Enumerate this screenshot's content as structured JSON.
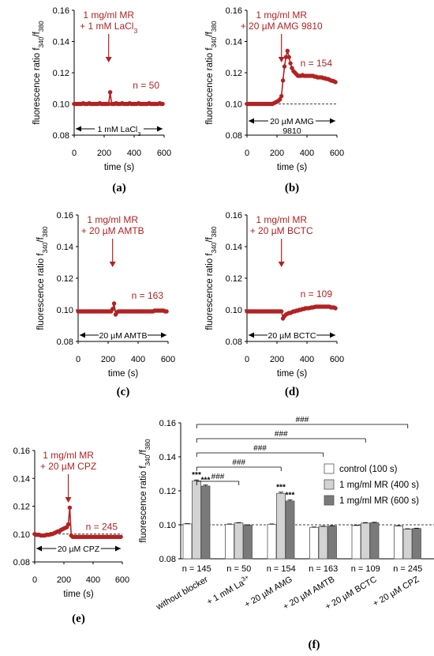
{
  "chart_data": [
    {
      "id": "a",
      "type": "line",
      "panel_label": "(a)",
      "ylabel": "fluorescence ratio f340/f380",
      "xlabel": "time (s)",
      "xlim": [
        0,
        600
      ],
      "ylim": [
        0.08,
        0.16
      ],
      "xticks": [
        0,
        200,
        400,
        600
      ],
      "yticks": [
        0.08,
        0.1,
        0.12,
        0.14,
        0.16
      ],
      "annotation": [
        "1 mg/ml MR",
        "+ 1 mM LaCl3"
      ],
      "arrow_x": 230,
      "n_label": "n = 50",
      "blocker": [
        "1 mM LaCl3"
      ],
      "baseline": null,
      "series": [
        {
          "x": [
            0,
            10,
            20,
            30,
            40,
            50,
            60,
            70,
            80,
            90,
            100,
            110,
            120,
            130,
            140,
            150,
            160,
            170,
            180,
            190,
            200,
            210,
            220,
            230,
            240,
            250,
            260,
            270,
            280,
            290,
            300,
            310,
            320,
            330,
            340,
            350,
            360,
            370,
            380,
            390,
            400,
            410,
            420,
            430,
            440,
            450,
            460,
            470,
            480,
            490,
            500,
            510,
            520,
            530,
            540,
            550,
            560,
            570,
            580,
            590
          ],
          "y": [
            0.1,
            0.1,
            0.1,
            0.1,
            0.1,
            0.1,
            0.1005,
            0.1,
            0.1,
            0.1,
            0.1005,
            0.1,
            0.1,
            0.1,
            0.1,
            0.1,
            0.1,
            0.1005,
            0.1,
            0.1,
            0.1,
            0.1,
            0.1,
            0.1,
            0.1075,
            0.1,
            0.1,
            0.1,
            0.1005,
            0.1,
            0.1,
            0.1,
            0.1005,
            0.1,
            0.1,
            0.1,
            0.1,
            0.1005,
            0.1,
            0.1,
            0.1,
            0.1,
            0.1,
            0.1005,
            0.1,
            0.1,
            0.1,
            0.1,
            0.1,
            0.1,
            0.1005,
            0.1,
            0.1,
            0.1,
            0.1,
            0.1,
            0.1,
            0.1005,
            0.1,
            0.1
          ]
        }
      ]
    },
    {
      "id": "b",
      "type": "line",
      "panel_label": "(b)",
      "ylabel": "fluorescence ratio f340/f380",
      "xlabel": "time (s)",
      "xlim": [
        0,
        600
      ],
      "ylim": [
        0.08,
        0.16
      ],
      "xticks": [
        0,
        200,
        400,
        600
      ],
      "yticks": [
        0.08,
        0.1,
        0.12,
        0.14,
        0.16
      ],
      "annotation": [
        "1 mg/ml MR",
        "+ 20 µM AMG 9810"
      ],
      "arrow_x": 230,
      "n_label": "n = 154",
      "blocker": [
        "20 µM AMG",
        "9810"
      ],
      "baseline": 0.1,
      "series": [
        {
          "x": [
            0,
            10,
            20,
            30,
            40,
            50,
            60,
            70,
            80,
            90,
            100,
            110,
            120,
            130,
            140,
            150,
            160,
            170,
            180,
            190,
            200,
            210,
            220,
            230,
            240,
            250,
            260,
            270,
            280,
            290,
            300,
            310,
            320,
            330,
            340,
            350,
            360,
            370,
            380,
            390,
            400,
            410,
            420,
            430,
            440,
            450,
            460,
            470,
            480,
            490,
            500,
            510,
            520,
            530,
            540,
            550,
            560,
            570,
            580,
            590
          ],
          "y": [
            0.1,
            0.1,
            0.1,
            0.1,
            0.1,
            0.1,
            0.1,
            0.1,
            0.1,
            0.1,
            0.1,
            0.1,
            0.1,
            0.1,
            0.1,
            0.1,
            0.1,
            0.1,
            0.1005,
            0.101,
            0.1015,
            0.102,
            0.103,
            0.105,
            0.115,
            0.124,
            0.13,
            0.134,
            0.13,
            0.126,
            0.123,
            0.121,
            0.12,
            0.119,
            0.118,
            0.118,
            0.118,
            0.1185,
            0.118,
            0.118,
            0.118,
            0.118,
            0.118,
            0.118,
            0.118,
            0.1175,
            0.1175,
            0.117,
            0.117,
            0.117,
            0.117,
            0.1165,
            0.1165,
            0.116,
            0.116,
            0.1155,
            0.115,
            0.1148,
            0.1145,
            0.114
          ]
        }
      ]
    },
    {
      "id": "c",
      "type": "line",
      "panel_label": "(c)",
      "ylabel": "fluorescence ratio f340/f380",
      "xlabel": "time (s)",
      "xlim": [
        0,
        600
      ],
      "ylim": [
        0.08,
        0.16
      ],
      "xticks": [
        0,
        200,
        400,
        600
      ],
      "yticks": [
        0.08,
        0.1,
        0.12,
        0.14,
        0.16
      ],
      "annotation": [
        "1 mg/ml MR",
        "+ 20 µM AMTB"
      ],
      "arrow_x": 230,
      "n_label": "n = 163",
      "blocker": [
        "20 µM AMTB"
      ],
      "baseline": 0.1,
      "series": [
        {
          "x": [
            0,
            10,
            20,
            30,
            40,
            50,
            60,
            70,
            80,
            90,
            100,
            110,
            120,
            130,
            140,
            150,
            160,
            170,
            180,
            190,
            200,
            210,
            220,
            230,
            240,
            250,
            260,
            270,
            280,
            290,
            300,
            310,
            320,
            330,
            340,
            350,
            360,
            370,
            380,
            390,
            400,
            410,
            420,
            430,
            440,
            450,
            460,
            470,
            480,
            490,
            500,
            510,
            520,
            530,
            540,
            550,
            560,
            570,
            580,
            590
          ],
          "y": [
            0.099,
            0.099,
            0.099,
            0.099,
            0.099,
            0.099,
            0.099,
            0.099,
            0.099,
            0.099,
            0.099,
            0.099,
            0.099,
            0.099,
            0.099,
            0.099,
            0.099,
            0.099,
            0.099,
            0.099,
            0.099,
            0.099,
            0.099,
            0.1005,
            0.104,
            0.097,
            0.0985,
            0.099,
            0.099,
            0.099,
            0.099,
            0.099,
            0.099,
            0.099,
            0.099,
            0.099,
            0.099,
            0.099,
            0.099,
            0.099,
            0.099,
            0.099,
            0.099,
            0.099,
            0.099,
            0.099,
            0.099,
            0.099,
            0.099,
            0.099,
            0.099,
            0.0995,
            0.0995,
            0.0995,
            0.0995,
            0.0995,
            0.0995,
            0.0995,
            0.099,
            0.099
          ]
        }
      ]
    },
    {
      "id": "d",
      "type": "line",
      "panel_label": "(d)",
      "ylabel": "fluorescence ratio f340/f380",
      "xlabel": "time (s)",
      "xlim": [
        0,
        600
      ],
      "ylim": [
        0.08,
        0.16
      ],
      "xticks": [
        0,
        200,
        400,
        600
      ],
      "yticks": [
        0.08,
        0.1,
        0.12,
        0.14,
        0.16
      ],
      "annotation": [
        "1 mg/ml MR",
        "+ 20 µM BCTC"
      ],
      "arrow_x": 230,
      "n_label": "n = 109",
      "blocker": [
        "20 µM BCTC"
      ],
      "baseline": null,
      "series": [
        {
          "x": [
            0,
            10,
            20,
            30,
            40,
            50,
            60,
            70,
            80,
            90,
            100,
            110,
            120,
            130,
            140,
            150,
            160,
            170,
            180,
            190,
            200,
            210,
            220,
            230,
            240,
            250,
            260,
            270,
            280,
            290,
            300,
            310,
            320,
            330,
            340,
            350,
            360,
            370,
            380,
            390,
            400,
            410,
            420,
            430,
            440,
            450,
            460,
            470,
            480,
            490,
            500,
            510,
            520,
            530,
            540,
            550,
            560,
            570,
            580,
            590
          ],
          "y": [
            0.099,
            0.099,
            0.099,
            0.099,
            0.099,
            0.099,
            0.099,
            0.099,
            0.099,
            0.099,
            0.099,
            0.099,
            0.099,
            0.099,
            0.099,
            0.099,
            0.099,
            0.099,
            0.099,
            0.099,
            0.099,
            0.099,
            0.099,
            0.099,
            0.0945,
            0.096,
            0.097,
            0.0975,
            0.098,
            0.098,
            0.0985,
            0.099,
            0.099,
            0.0995,
            0.0995,
            0.1,
            0.1,
            0.1005,
            0.1005,
            0.101,
            0.101,
            0.101,
            0.1012,
            0.1015,
            0.1015,
            0.1018,
            0.102,
            0.102,
            0.102,
            0.102,
            0.102,
            0.102,
            0.102,
            0.102,
            0.102,
            0.102,
            0.1015,
            0.1015,
            0.1015,
            0.101
          ]
        }
      ]
    },
    {
      "id": "e",
      "type": "line",
      "panel_label": "(e)",
      "ylabel": "",
      "xlabel": "time (s)",
      "xlim": [
        0,
        600
      ],
      "ylim": [
        0.08,
        0.16
      ],
      "xticks": [
        0,
        200,
        400,
        600
      ],
      "yticks": [
        0.08,
        0.1,
        0.12,
        0.14,
        0.16
      ],
      "annotation": [
        "1 mg/ml MR",
        "+ 20 µM CPZ"
      ],
      "arrow_x": 230,
      "n_label": "n = 245",
      "blocker": [
        "20 µM CPZ"
      ],
      "baseline": 0.1,
      "series": [
        {
          "x": [
            0,
            10,
            20,
            30,
            40,
            50,
            60,
            70,
            80,
            90,
            100,
            110,
            120,
            130,
            140,
            150,
            160,
            170,
            180,
            190,
            200,
            210,
            220,
            230,
            240,
            250,
            260,
            270,
            280,
            290,
            300,
            310,
            320,
            330,
            340,
            350,
            360,
            370,
            380,
            390,
            400,
            410,
            420,
            430,
            440,
            450,
            460,
            470,
            480,
            490,
            500,
            510,
            520,
            530,
            540,
            550,
            560,
            570,
            580,
            590
          ],
          "y": [
            0.1,
            0.0995,
            0.0995,
            0.0995,
            0.099,
            0.099,
            0.099,
            0.099,
            0.0995,
            0.0995,
            0.0995,
            0.1,
            0.1,
            0.1005,
            0.101,
            0.1015,
            0.102,
            0.102,
            0.103,
            0.1035,
            0.104,
            0.1045,
            0.105,
            0.107,
            0.119,
            0.099,
            0.098,
            0.098,
            0.098,
            0.098,
            0.098,
            0.098,
            0.098,
            0.098,
            0.098,
            0.098,
            0.098,
            0.098,
            0.098,
            0.098,
            0.098,
            0.098,
            0.098,
            0.098,
            0.098,
            0.098,
            0.098,
            0.098,
            0.098,
            0.098,
            0.098,
            0.098,
            0.098,
            0.098,
            0.098,
            0.098,
            0.098,
            0.098,
            0.098,
            0.098
          ]
        }
      ]
    },
    {
      "id": "f",
      "type": "bar",
      "panel_label": "(f)",
      "ylabel": "fluorescence ratio f340/f380",
      "ylim": [
        0.08,
        0.16
      ],
      "yticks": [
        0.08,
        0.1,
        0.12,
        0.14,
        0.16
      ],
      "baseline": 0.1,
      "categories": [
        "without blocker",
        "+ 1 mM La3+",
        "+ 20 µM AMG",
        "+ 20 µM AMTB",
        "+ 20 µM BCTC",
        "+ 20 µM CPZ"
      ],
      "n_labels": [
        "n = 145",
        "n = 50",
        "n = 154",
        "n = 163",
        "n = 109",
        "n = 245"
      ],
      "series": [
        {
          "name": "control (100 s)",
          "color": "#ffffff",
          "values": [
            0.1005,
            0.1003,
            0.1003,
            0.0985,
            0.0996,
            0.0993
          ],
          "errors": [
            0.0002,
            0.0002,
            0.0002,
            0.0002,
            0.0002,
            0.0002
          ]
        },
        {
          "name": "1 mg/ml MR (400 s)",
          "color": "#d3d3d3",
          "values": [
            0.1258,
            0.1011,
            0.1185,
            0.099,
            0.101,
            0.0975
          ],
          "errors": [
            0.0006,
            0.0002,
            0.0007,
            0.0002,
            0.0003,
            0.0002
          ]
        },
        {
          "name": "1 mg/ml MR (600 s)",
          "color": "#7a7a7a",
          "values": [
            0.1228,
            0.0998,
            0.114,
            0.0993,
            0.1012,
            0.0978
          ],
          "errors": [
            0.0006,
            0.0002,
            0.0006,
            0.0002,
            0.0003,
            0.0002
          ]
        }
      ],
      "significance": [
        {
          "category": 0,
          "series": 1,
          "label": "***"
        },
        {
          "category": 0,
          "series": 2,
          "label": "***"
        },
        {
          "category": 2,
          "series": 1,
          "label": "***"
        },
        {
          "category": 2,
          "series": 2,
          "label": "***"
        }
      ],
      "comparisons": [
        {
          "to": 1,
          "label": "###"
        },
        {
          "to": 2,
          "label": "###"
        },
        {
          "to": 3,
          "label": "###"
        },
        {
          "to": 4,
          "label": "###"
        },
        {
          "to": 5,
          "label": "###"
        }
      ]
    }
  ]
}
